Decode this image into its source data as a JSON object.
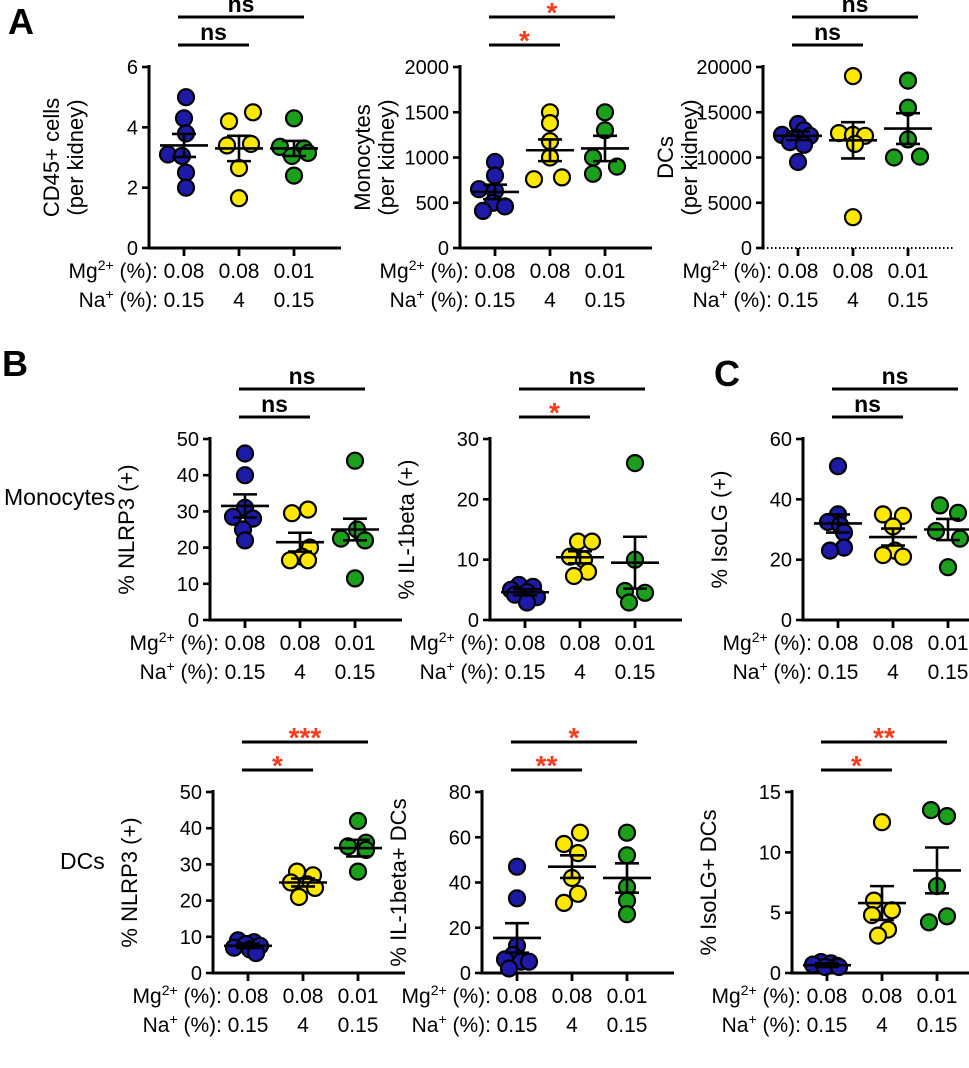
{
  "labels": {
    "panel_a": "A",
    "panel_b": "B",
    "panel_c": "C",
    "row_monocytes": "Monocytes",
    "row_dcs": "DCs"
  },
  "colors": {
    "blue": "#1c1aa6",
    "yellow": "#ffe800",
    "green": "#1ca01c",
    "sig_red": "#f83b1e",
    "sig_black": "#000000",
    "axis": "#000000"
  },
  "x_axis": {
    "mg_label": {
      "base": "Mg",
      "sup": "2+",
      "rest": " (%):"
    },
    "na_label": {
      "base": "Na",
      "sup": "+",
      "rest": " (%):"
    },
    "mg_values": [
      "0.08",
      "0.08",
      "0.01"
    ],
    "na_values": [
      "0.15",
      "4",
      "0.15"
    ]
  },
  "group_conditions": [
    {
      "name": "Mg 0.08% / Na 0.15%",
      "color": "blue"
    },
    {
      "name": "Mg 0.08% / Na 4%",
      "color": "yellow"
    },
    {
      "name": "Mg 0.01% / Na 0.15%",
      "color": "green"
    }
  ],
  "chart_data": [
    {
      "id": "a1",
      "panel": "A",
      "type": "scatter",
      "ylabel_lines": [
        "CD45+ cells",
        "(per kidney)"
      ],
      "ylim": [
        0,
        6
      ],
      "yticks": [
        0,
        2,
        4,
        6
      ],
      "dashed_x": false,
      "series": [
        {
          "name": "Mg 0.08% / Na 0.15%",
          "color": "blue",
          "values": [
            5.0,
            4.3,
            3.8,
            3.1,
            3.05,
            2.5,
            2.0
          ],
          "dx": [
            2,
            0,
            2,
            -16,
            -2,
            2,
            2
          ],
          "mean": 3.4,
          "err": 0.38
        },
        {
          "name": "Mg 0.08% / Na 4%",
          "color": "yellow",
          "values": [
            4.5,
            4.2,
            3.45,
            3.4,
            2.65,
            1.65
          ],
          "dx": [
            14,
            -10,
            12,
            -12,
            0,
            0
          ],
          "mean": 3.3,
          "err": 0.42
        },
        {
          "name": "Mg 0.01% / Na 0.15%",
          "color": "green",
          "values": [
            4.3,
            3.35,
            3.3,
            3.15,
            3.05,
            2.4
          ],
          "dx": [
            0,
            -14,
            10,
            14,
            -2,
            0
          ],
          "mean": 3.3,
          "err": 0.25
        }
      ],
      "significance": [
        {
          "a": 0,
          "b": 1,
          "label": "ns",
          "red": false
        },
        {
          "a": 0,
          "b": 2,
          "label": "ns",
          "red": false
        }
      ]
    },
    {
      "id": "a2",
      "panel": "A",
      "type": "scatter",
      "ylabel_lines": [
        "Monocytes",
        "(per kidney)"
      ],
      "ylim": [
        0,
        2000
      ],
      "yticks": [
        0,
        500,
        1000,
        1500,
        2000
      ],
      "dashed_x": false,
      "series": [
        {
          "name": "Mg 0.08% / Na 0.15%",
          "color": "blue",
          "values": [
            950,
            800,
            650,
            630,
            500,
            460,
            410
          ],
          "dx": [
            0,
            0,
            -16,
            0,
            -2,
            10,
            -12
          ],
          "mean": 620,
          "err": 80
        },
        {
          "name": "Mg 0.08% / Na 4%",
          "color": "yellow",
          "values": [
            1500,
            1380,
            1180,
            1000,
            780,
            760
          ],
          "dx": [
            0,
            0,
            0,
            0,
            12,
            -16
          ],
          "mean": 1080,
          "err": 120
        },
        {
          "name": "Mg 0.01% / Na 0.15%",
          "color": "green",
          "values": [
            1500,
            1300,
            1000,
            900,
            820
          ],
          "dx": [
            0,
            0,
            -12,
            12,
            -12
          ],
          "mean": 1100,
          "err": 140
        }
      ],
      "significance": [
        {
          "a": 0,
          "b": 1,
          "label": "*",
          "red": true
        },
        {
          "a": 0,
          "b": 2,
          "label": "*",
          "red": true
        }
      ]
    },
    {
      "id": "a3",
      "panel": "A",
      "type": "scatter",
      "ylabel_lines": [
        "DCs",
        "(per kidney)"
      ],
      "ylim": [
        0,
        20000
      ],
      "yticks": [
        0,
        5000,
        10000,
        15000,
        20000
      ],
      "dashed_x": true,
      "series": [
        {
          "name": "Mg 0.08% / Na 0.15%",
          "color": "blue",
          "values": [
            13700,
            13000,
            12500,
            12400,
            12200,
            11700,
            11400,
            9500
          ],
          "dx": [
            0,
            6,
            -16,
            12,
            -2,
            -8,
            6,
            0
          ],
          "mean": 12400,
          "err": 480
        },
        {
          "name": "Mg 0.08% / Na 4%",
          "color": "yellow",
          "values": [
            19000,
            12700,
            12500,
            12400,
            11500,
            3400
          ],
          "dx": [
            0,
            -14,
            0,
            12,
            2,
            0
          ],
          "mean": 11900,
          "err": 2000
        },
        {
          "name": "Mg 0.01% / Na 0.15%",
          "color": "green",
          "values": [
            18500,
            15500,
            12000,
            10100,
            10000
          ],
          "dx": [
            0,
            0,
            0,
            12,
            -14
          ],
          "mean": 13200,
          "err": 1700
        }
      ],
      "significance": [
        {
          "a": 0,
          "b": 1,
          "label": "ns",
          "red": false
        },
        {
          "a": 0,
          "b": 2,
          "label": "ns",
          "red": false
        }
      ]
    },
    {
      "id": "b1",
      "panel": "B",
      "type": "scatter",
      "ylabel_lines": [
        "% NLRP3 (+)"
      ],
      "ylim": [
        0,
        50
      ],
      "yticks": [
        0,
        10,
        20,
        30,
        40,
        50
      ],
      "dashed_x": false,
      "series": [
        {
          "name": "Mg 0.08% / Na 0.15%",
          "color": "blue",
          "values": [
            46,
            40,
            31,
            28.5,
            28,
            25,
            22
          ],
          "dx": [
            0,
            0,
            0,
            -12,
            8,
            -2,
            0
          ],
          "mean": 31.5,
          "err": 3.2
        },
        {
          "name": "Mg 0.08% / Na 4%",
          "color": "yellow",
          "values": [
            30.5,
            29.5,
            20,
            17.5,
            16.5,
            16.5
          ],
          "dx": [
            8,
            -8,
            10,
            2,
            -10,
            8
          ],
          "mean": 21.5,
          "err": 2.6
        },
        {
          "name": "Mg 0.01% / Na 0.15%",
          "color": "green",
          "values": [
            44,
            25,
            22.5,
            22,
            11.5
          ],
          "dx": [
            0,
            2,
            -14,
            10,
            0
          ],
          "mean": 25,
          "err": 3
        }
      ],
      "significance": [
        {
          "a": 0,
          "b": 1,
          "label": "ns",
          "red": false
        },
        {
          "a": 0,
          "b": 2,
          "label": "ns",
          "red": false
        }
      ]
    },
    {
      "id": "b2",
      "panel": "B",
      "type": "scatter",
      "ylabel_lines": [
        "% IL-1beta (+)"
      ],
      "ylim": [
        0,
        30
      ],
      "yticks": [
        0,
        10,
        20,
        30
      ],
      "dashed_x": false,
      "series": [
        {
          "name": "Mg 0.08% / Na 0.15%",
          "color": "blue",
          "values": [
            5.8,
            5.5,
            5.0,
            4.6,
            4.2,
            3.8,
            2.9
          ],
          "dx": [
            -6,
            8,
            -14,
            2,
            -10,
            12,
            2
          ],
          "mean": 4.6,
          "err": 0.5
        },
        {
          "name": "Mg 0.08% / Na 4%",
          "color": "yellow",
          "values": [
            13,
            13,
            10.5,
            10,
            8,
            7.3
          ],
          "dx": [
            -2,
            12,
            -10,
            4,
            8,
            -6
          ],
          "mean": 10.4,
          "err": 1.0
        },
        {
          "name": "Mg 0.01% / Na 0.15%",
          "color": "green",
          "values": [
            26,
            10,
            4.8,
            4.5,
            2.9
          ],
          "dx": [
            0,
            0,
            -10,
            10,
            -6
          ],
          "mean": 9.5,
          "err": 4.3
        }
      ],
      "significance": [
        {
          "a": 0,
          "b": 1,
          "label": "*",
          "red": true
        },
        {
          "a": 0,
          "b": 2,
          "label": "ns",
          "red": false
        }
      ]
    },
    {
      "id": "c1",
      "panel": "C",
      "type": "scatter",
      "ylabel_lines": [
        "% IsoLG (+)"
      ],
      "ylim": [
        0,
        60
      ],
      "yticks": [
        0,
        20,
        40,
        60
      ],
      "dashed_x": false,
      "series": [
        {
          "name": "Mg 0.08% / Na 0.15%",
          "color": "blue",
          "values": [
            51,
            35,
            32.5,
            31.5,
            29,
            24,
            23
          ],
          "dx": [
            0,
            0,
            -10,
            2,
            6,
            6,
            -8
          ],
          "mean": 32,
          "err": 3
        },
        {
          "name": "Mg 0.08% / Na 4%",
          "color": "yellow",
          "values": [
            35,
            34.5,
            31,
            23,
            21.5,
            21
          ],
          "dx": [
            -10,
            10,
            0,
            2,
            -10,
            10
          ],
          "mean": 27.5,
          "err": 2.8
        },
        {
          "name": "Mg 0.01% / Na 0.15%",
          "color": "green",
          "values": [
            38,
            35.5,
            29.5,
            27,
            17.5
          ],
          "dx": [
            -8,
            10,
            -12,
            12,
            0
          ],
          "mean": 30,
          "err": 3.5
        }
      ],
      "significance": [
        {
          "a": 0,
          "b": 1,
          "label": "ns",
          "red": false
        },
        {
          "a": 0,
          "b": 2,
          "label": "ns",
          "red": false
        }
      ]
    },
    {
      "id": "b3",
      "panel": "B",
      "type": "scatter",
      "ylabel_lines": [
        "% NLRP3 (+)"
      ],
      "ylim": [
        0,
        50
      ],
      "yticks": [
        0,
        10,
        20,
        30,
        40,
        50
      ],
      "dashed_x": false,
      "series": [
        {
          "name": "Mg 0.08% / Na 0.15%",
          "color": "blue",
          "values": [
            9,
            8.5,
            8,
            7.5,
            7,
            6.5,
            5.5
          ],
          "dx": [
            -10,
            6,
            -2,
            12,
            -14,
            2,
            8
          ],
          "mean": 7.5,
          "err": 0.6
        },
        {
          "name": "Mg 0.08% / Na 4%",
          "color": "yellow",
          "values": [
            28,
            27,
            25,
            24.5,
            23.5,
            21
          ],
          "dx": [
            -6,
            10,
            -12,
            4,
            12,
            -4
          ],
          "mean": 25,
          "err": 1.1
        },
        {
          "name": "Mg 0.01% / Na 0.15%",
          "color": "green",
          "values": [
            42,
            36,
            35,
            34,
            28
          ],
          "dx": [
            0,
            8,
            -10,
            8,
            0
          ],
          "mean": 34.5,
          "err": 2.3
        }
      ],
      "significance": [
        {
          "a": 0,
          "b": 1,
          "label": "*",
          "red": true
        },
        {
          "a": 0,
          "b": 2,
          "label": "***",
          "red": true
        }
      ]
    },
    {
      "id": "b4",
      "panel": "B",
      "type": "scatter",
      "ylabel_lines": [
        "% IL-1beta+ DCs"
      ],
      "ylim": [
        0,
        80
      ],
      "yticks": [
        0,
        20,
        40,
        60,
        80
      ],
      "dashed_x": false,
      "series": [
        {
          "name": "Mg 0.08% / Na 0.15%",
          "color": "blue",
          "values": [
            47,
            33,
            12,
            8,
            6,
            5,
            5,
            2
          ],
          "dx": [
            0,
            0,
            0,
            -4,
            -12,
            4,
            12,
            -8
          ],
          "mean": 15.5,
          "err": 6.5
        },
        {
          "name": "Mg 0.08% / Na 4%",
          "color": "yellow",
          "values": [
            62,
            57,
            53,
            42,
            35,
            31
          ],
          "dx": [
            8,
            -8,
            6,
            0,
            6,
            -8
          ],
          "mean": 47,
          "err": 5
        },
        {
          "name": "Mg 0.01% / Na 0.15%",
          "color": "green",
          "values": [
            62,
            52,
            38,
            32,
            26
          ],
          "dx": [
            0,
            0,
            0,
            0,
            0
          ],
          "mean": 42,
          "err": 6.5
        }
      ],
      "significance": [
        {
          "a": 0,
          "b": 1,
          "label": "**",
          "red": true
        },
        {
          "a": 0,
          "b": 2,
          "label": "*",
          "red": true
        }
      ]
    },
    {
      "id": "c2",
      "panel": "C",
      "type": "scatter",
      "ylabel_lines": [
        "% IsoLG+ DCs"
      ],
      "ylim": [
        0,
        15
      ],
      "yticks": [
        0,
        5,
        10,
        15
      ],
      "dashed_x": false,
      "series": [
        {
          "name": "Mg 0.08% / Na 0.15%",
          "color": "blue",
          "values": [
            0.9,
            0.8,
            0.7,
            0.6,
            0.5,
            0.5
          ],
          "dx": [
            -6,
            4,
            -14,
            10,
            -2,
            12
          ],
          "mean": 0.65,
          "err": 0.15
        },
        {
          "name": "Mg 0.08% / Na 4%",
          "color": "yellow",
          "values": [
            12.5,
            6.0,
            5.2,
            4.8,
            3.6,
            3.1
          ],
          "dx": [
            0,
            -8,
            10,
            -10,
            6,
            -4
          ],
          "mean": 5.8,
          "err": 1.4
        },
        {
          "name": "Mg 0.01% / Na 0.15%",
          "color": "green",
          "values": [
            13.5,
            13.0,
            7.2,
            4.7,
            4.2
          ],
          "dx": [
            -6,
            10,
            0,
            10,
            -8
          ],
          "mean": 8.5,
          "err": 1.9
        }
      ],
      "significance": [
        {
          "a": 0,
          "b": 1,
          "label": "*",
          "red": true
        },
        {
          "a": 0,
          "b": 2,
          "label": "**",
          "red": true
        }
      ]
    }
  ],
  "plot_names": {
    "a1": "plot-cd45-cells-per-kidney",
    "a2": "plot-monocytes-per-kidney",
    "a3": "plot-dcs-per-kidney",
    "b1": "plot-monocytes-nlrp3",
    "b2": "plot-monocytes-il1beta",
    "c1": "plot-monocytes-isolg",
    "b3": "plot-dcs-nlrp3",
    "b4": "plot-dcs-il1beta",
    "c2": "plot-dcs-isolg"
  }
}
